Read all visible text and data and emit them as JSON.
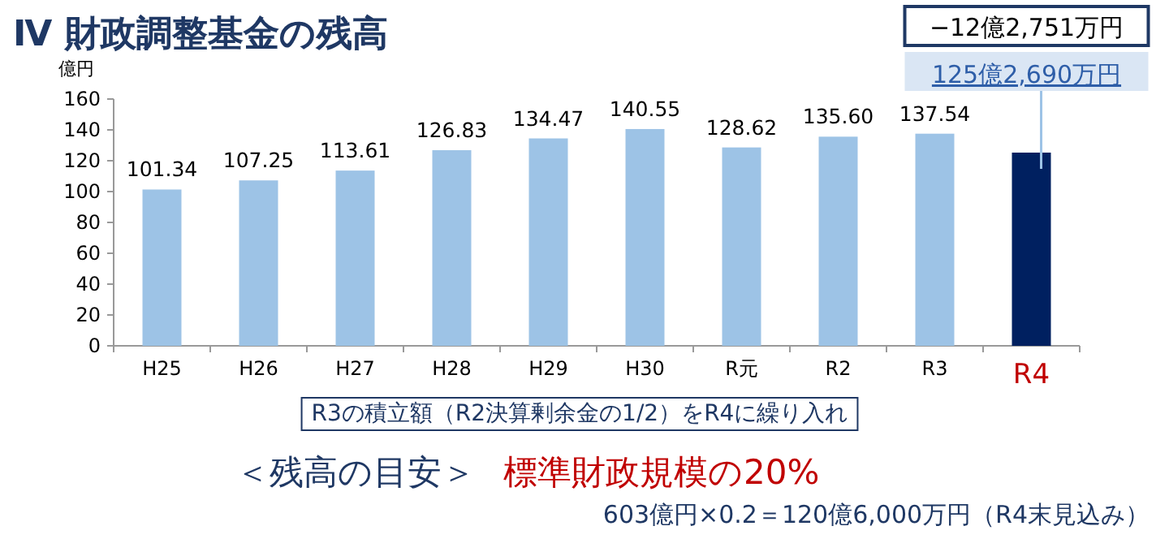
{
  "chart_data": {
    "type": "bar",
    "title": "Ⅳ 財政調整基金の残高",
    "ylabel": "億円",
    "categories": [
      "H25",
      "H26",
      "H27",
      "H28",
      "H29",
      "H30",
      "R元",
      "R2",
      "R3",
      "R4"
    ],
    "values": [
      101.34,
      107.25,
      113.61,
      126.83,
      134.47,
      140.55,
      128.62,
      135.6,
      137.54,
      125.269
    ],
    "colors": [
      "#9dc3e6",
      "#9dc3e6",
      "#9dc3e6",
      "#9dc3e6",
      "#9dc3e6",
      "#9dc3e6",
      "#9dc3e6",
      "#9dc3e6",
      "#9dc3e6",
      "#002060"
    ],
    "value_labels": [
      "101.34",
      "107.25",
      "113.61",
      "126.83",
      "134.47",
      "140.55",
      "128.62",
      "135.60",
      "137.54",
      "125億2,690万円"
    ],
    "ylim": [
      0,
      160
    ],
    "yticks": [
      0,
      20,
      40,
      60,
      80,
      100,
      120,
      140,
      160
    ],
    "grid": false,
    "annotations": [
      "−12億2,751万円",
      "R3の積立額（R2決算剰余金の1/2）をR4に繰り入れ",
      "＜残高の目安＞",
      "標準財政規模の20%",
      "603億円×0.2＝120億6,000万円（R4末見込み）"
    ]
  }
}
